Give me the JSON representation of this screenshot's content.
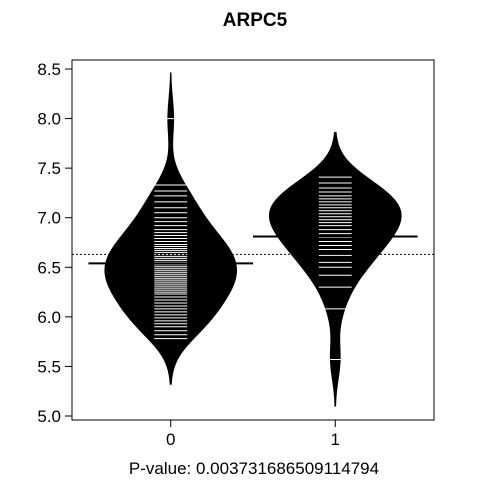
{
  "chart_data": {
    "type": "beanplot",
    "title": "ARPC5",
    "xlabel": "P-value: 0.003731686509114794",
    "ylabel": "",
    "categories": [
      "0",
      "1"
    ],
    "ylim": [
      5.0,
      8.5
    ],
    "yticks": [
      5.0,
      5.5,
      6.0,
      6.5,
      7.0,
      7.5,
      8.0,
      8.5
    ],
    "yticklabels": [
      "5.0",
      "5.5",
      "6.0",
      "6.5",
      "7.0",
      "7.5",
      "8.0",
      "8.5"
    ],
    "overall_mean": 6.63,
    "group_means": [
      6.54,
      6.81
    ],
    "grid": false,
    "groups": [
      {
        "name": "0",
        "mean": 6.54,
        "range": [
          5.32,
          8.46
        ],
        "observations": [
          5.78,
          5.82,
          5.86,
          5.9,
          5.93,
          5.96,
          5.99,
          6.02,
          6.05,
          6.08,
          6.11,
          6.14,
          6.17,
          6.2,
          6.23,
          6.25,
          6.27,
          6.29,
          6.31,
          6.33,
          6.35,
          6.37,
          6.39,
          6.41,
          6.43,
          6.45,
          6.47,
          6.49,
          6.51,
          6.53,
          6.55,
          6.57,
          6.59,
          6.61,
          6.63,
          6.65,
          6.67,
          6.69,
          6.71,
          6.73,
          6.76,
          6.79,
          6.82,
          6.85,
          6.88,
          6.92,
          6.96,
          7.0,
          7.05,
          7.1,
          7.16,
          7.22,
          7.27,
          7.33,
          8.0
        ]
      },
      {
        "name": "1",
        "mean": 6.81,
        "range": [
          5.1,
          7.86
        ],
        "observations": [
          5.57,
          6.08,
          6.3,
          6.42,
          6.5,
          6.55,
          6.62,
          6.68,
          6.72,
          6.76,
          6.8,
          6.84,
          6.88,
          6.92,
          6.95,
          6.98,
          7.01,
          7.04,
          7.07,
          7.1,
          7.13,
          7.16,
          7.19,
          7.22,
          7.26,
          7.3,
          7.35,
          7.41
        ]
      }
    ],
    "colors": {
      "bean": "#000000",
      "line": "#ffffff",
      "axis": "#000000",
      "background": "#ffffff"
    }
  }
}
